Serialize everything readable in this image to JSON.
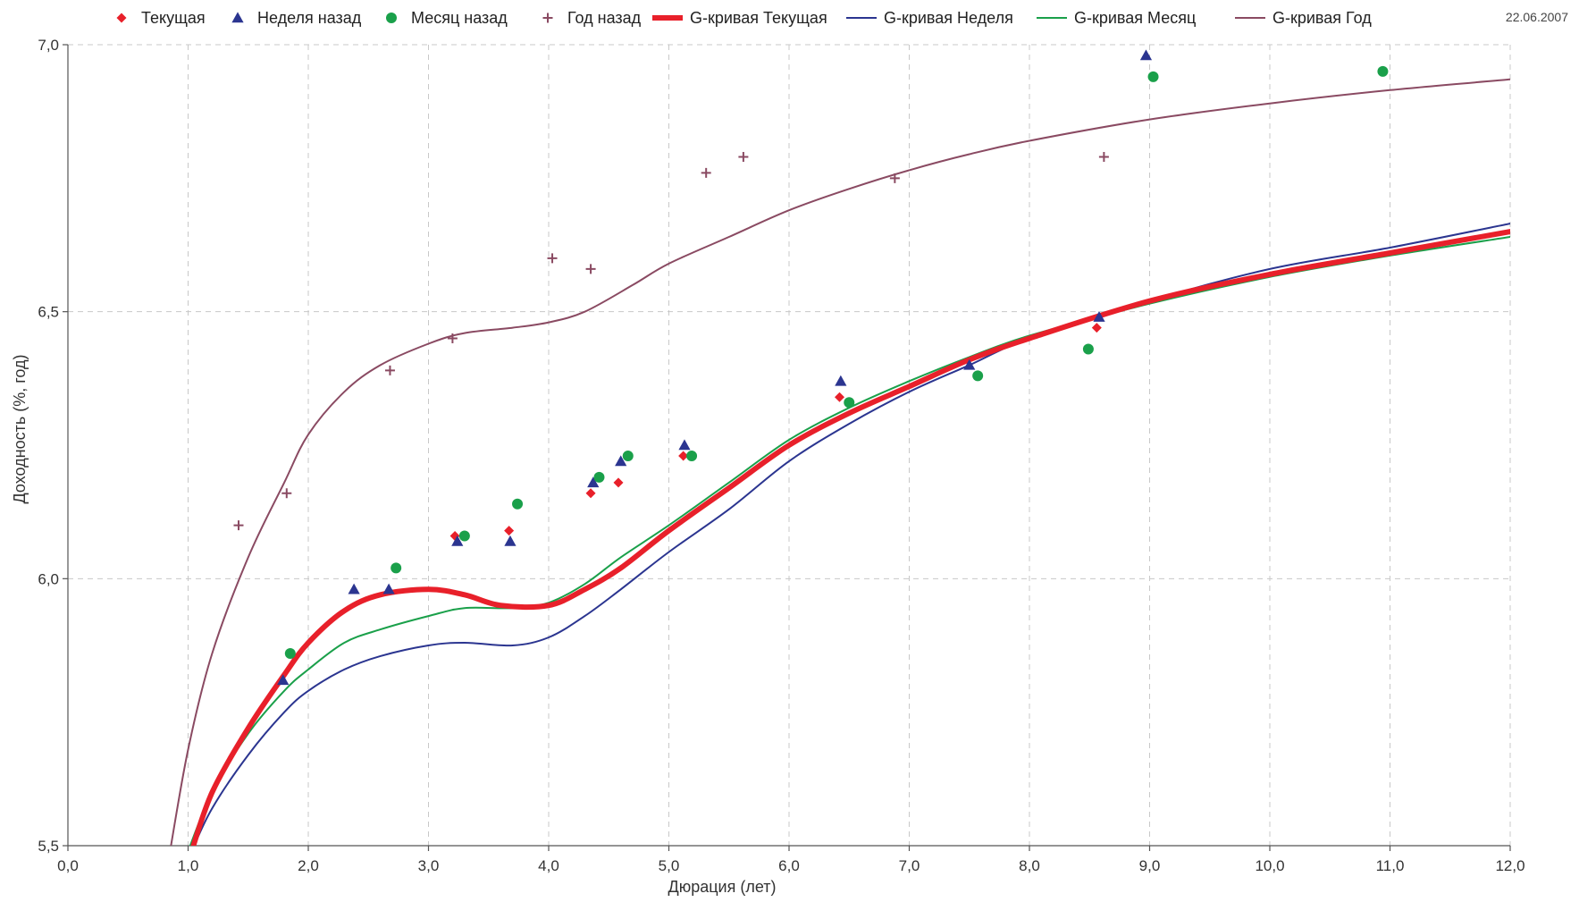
{
  "date_stamp": "22.06.2007",
  "chart_data": {
    "type": "scatter",
    "xlabel": "Дюрация (лет)",
    "ylabel": "Доходность (%, год)",
    "xlim": [
      0,
      12
    ],
    "ylim": [
      5.5,
      7.0
    ],
    "x_ticks": [
      0,
      1,
      2,
      3,
      4,
      5,
      6,
      7,
      8,
      9,
      10,
      11,
      12
    ],
    "x_tick_labels": [
      "0,0",
      "1,0",
      "2,0",
      "3,0",
      "4,0",
      "5,0",
      "6,0",
      "7,0",
      "8,0",
      "9,0",
      "10,0",
      "11,0",
      "12,0"
    ],
    "y_ticks": [
      5.5,
      6.0,
      6.5,
      7.0
    ],
    "y_tick_labels": [
      "5,5",
      "6,0",
      "6,5",
      "7,0"
    ],
    "grid": true,
    "legend_position": "top",
    "series": [
      {
        "name": "Текущая",
        "kind": "points",
        "marker": "diamond",
        "color": "#e8202a",
        "points": [
          [
            3.22,
            6.08
          ],
          [
            3.67,
            6.09
          ],
          [
            4.35,
            6.16
          ],
          [
            4.58,
            6.18
          ],
          [
            5.12,
            6.23
          ],
          [
            6.42,
            6.34
          ],
          [
            8.56,
            6.47
          ]
        ]
      },
      {
        "name": "Неделя назад",
        "kind": "points",
        "marker": "triangle",
        "color": "#2b3590",
        "points": [
          [
            1.79,
            5.81
          ],
          [
            2.38,
            5.98
          ],
          [
            2.67,
            5.98
          ],
          [
            3.24,
            6.07
          ],
          [
            3.68,
            6.07
          ],
          [
            4.37,
            6.18
          ],
          [
            4.6,
            6.22
          ],
          [
            5.13,
            6.25
          ],
          [
            6.43,
            6.37
          ],
          [
            7.5,
            6.4
          ],
          [
            8.58,
            6.49
          ],
          [
            8.97,
            6.98
          ]
        ]
      },
      {
        "name": "Месяц назад",
        "kind": "points",
        "marker": "circle",
        "color": "#1aa04a",
        "points": [
          [
            1.85,
            5.86
          ],
          [
            2.73,
            6.02
          ],
          [
            3.3,
            6.08
          ],
          [
            3.74,
            6.14
          ],
          [
            4.42,
            6.19
          ],
          [
            4.66,
            6.23
          ],
          [
            5.19,
            6.23
          ],
          [
            6.5,
            6.33
          ],
          [
            7.57,
            6.38
          ],
          [
            8.49,
            6.43
          ],
          [
            9.03,
            6.94
          ],
          [
            10.94,
            6.95
          ]
        ]
      },
      {
        "name": "Год назад",
        "kind": "points",
        "marker": "plus",
        "color": "#8a4a62",
        "points": [
          [
            1.42,
            6.1
          ],
          [
            1.82,
            6.16
          ],
          [
            2.68,
            6.39
          ],
          [
            3.2,
            6.45
          ],
          [
            4.03,
            6.6
          ],
          [
            4.35,
            6.58
          ],
          [
            5.31,
            6.76
          ],
          [
            5.62,
            6.79
          ],
          [
            6.88,
            6.75
          ],
          [
            8.62,
            6.79
          ]
        ]
      },
      {
        "name": "G-кривая Текущая",
        "kind": "line",
        "color": "#e8202a",
        "line_width": 6,
        "points": [
          [
            1.03,
            5.49
          ],
          [
            1.2,
            5.6
          ],
          [
            1.5,
            5.72
          ],
          [
            1.8,
            5.82
          ],
          [
            2.0,
            5.88
          ],
          [
            2.3,
            5.94
          ],
          [
            2.6,
            5.97
          ],
          [
            3.0,
            5.98
          ],
          [
            3.3,
            5.97
          ],
          [
            3.6,
            5.95
          ],
          [
            4.0,
            5.95
          ],
          [
            4.3,
            5.98
          ],
          [
            4.6,
            6.02
          ],
          [
            5.0,
            6.09
          ],
          [
            5.5,
            6.17
          ],
          [
            6.0,
            6.25
          ],
          [
            6.5,
            6.31
          ],
          [
            7.0,
            6.36
          ],
          [
            7.5,
            6.41
          ],
          [
            8.0,
            6.45
          ],
          [
            9.0,
            6.52
          ],
          [
            10.0,
            6.57
          ],
          [
            11.0,
            6.61
          ],
          [
            12.0,
            6.65
          ]
        ]
      },
      {
        "name": "G-кривая Неделя",
        "kind": "line",
        "color": "#2b3590",
        "line_width": 2,
        "points": [
          [
            1.03,
            5.49
          ],
          [
            1.2,
            5.57
          ],
          [
            1.5,
            5.67
          ],
          [
            1.8,
            5.75
          ],
          [
            2.0,
            5.79
          ],
          [
            2.3,
            5.83
          ],
          [
            2.6,
            5.855
          ],
          [
            3.0,
            5.875
          ],
          [
            3.3,
            5.88
          ],
          [
            3.7,
            5.875
          ],
          [
            4.0,
            5.89
          ],
          [
            4.3,
            5.93
          ],
          [
            4.6,
            5.98
          ],
          [
            5.0,
            6.05
          ],
          [
            5.5,
            6.13
          ],
          [
            6.0,
            6.22
          ],
          [
            6.5,
            6.29
          ],
          [
            7.0,
            6.35
          ],
          [
            7.5,
            6.4
          ],
          [
            8.0,
            6.45
          ],
          [
            9.0,
            6.52
          ],
          [
            10.0,
            6.58
          ],
          [
            11.0,
            6.62
          ],
          [
            12.0,
            6.665
          ]
        ]
      },
      {
        "name": "G-кривая Месяц",
        "kind": "line",
        "color": "#1aa04a",
        "line_width": 2,
        "points": [
          [
            1.0,
            5.49
          ],
          [
            1.2,
            5.6
          ],
          [
            1.5,
            5.71
          ],
          [
            1.8,
            5.79
          ],
          [
            2.0,
            5.83
          ],
          [
            2.3,
            5.88
          ],
          [
            2.6,
            5.905
          ],
          [
            3.0,
            5.93
          ],
          [
            3.3,
            5.945
          ],
          [
            3.7,
            5.945
          ],
          [
            4.0,
            5.955
          ],
          [
            4.3,
            5.99
          ],
          [
            4.6,
            6.04
          ],
          [
            5.0,
            6.1
          ],
          [
            5.5,
            6.18
          ],
          [
            6.0,
            6.26
          ],
          [
            6.5,
            6.32
          ],
          [
            7.0,
            6.37
          ],
          [
            7.5,
            6.415
          ],
          [
            8.0,
            6.455
          ],
          [
            9.0,
            6.515
          ],
          [
            10.0,
            6.565
          ],
          [
            11.0,
            6.605
          ],
          [
            12.0,
            6.64
          ]
        ]
      },
      {
        "name": "G-кривая Год",
        "kind": "line",
        "color": "#8a4a62",
        "line_width": 2,
        "points": [
          [
            0.85,
            5.49
          ],
          [
            1.0,
            5.68
          ],
          [
            1.2,
            5.86
          ],
          [
            1.5,
            6.04
          ],
          [
            1.8,
            6.18
          ],
          [
            2.0,
            6.27
          ],
          [
            2.3,
            6.35
          ],
          [
            2.6,
            6.4
          ],
          [
            3.0,
            6.44
          ],
          [
            3.3,
            6.46
          ],
          [
            3.7,
            6.47
          ],
          [
            4.0,
            6.48
          ],
          [
            4.3,
            6.5
          ],
          [
            4.7,
            6.55
          ],
          [
            5.0,
            6.59
          ],
          [
            5.5,
            6.64
          ],
          [
            6.0,
            6.69
          ],
          [
            6.5,
            6.73
          ],
          [
            7.0,
            6.765
          ],
          [
            7.5,
            6.795
          ],
          [
            8.0,
            6.82
          ],
          [
            9.0,
            6.86
          ],
          [
            10.0,
            6.89
          ],
          [
            11.0,
            6.915
          ],
          [
            12.0,
            6.935
          ]
        ]
      }
    ]
  }
}
